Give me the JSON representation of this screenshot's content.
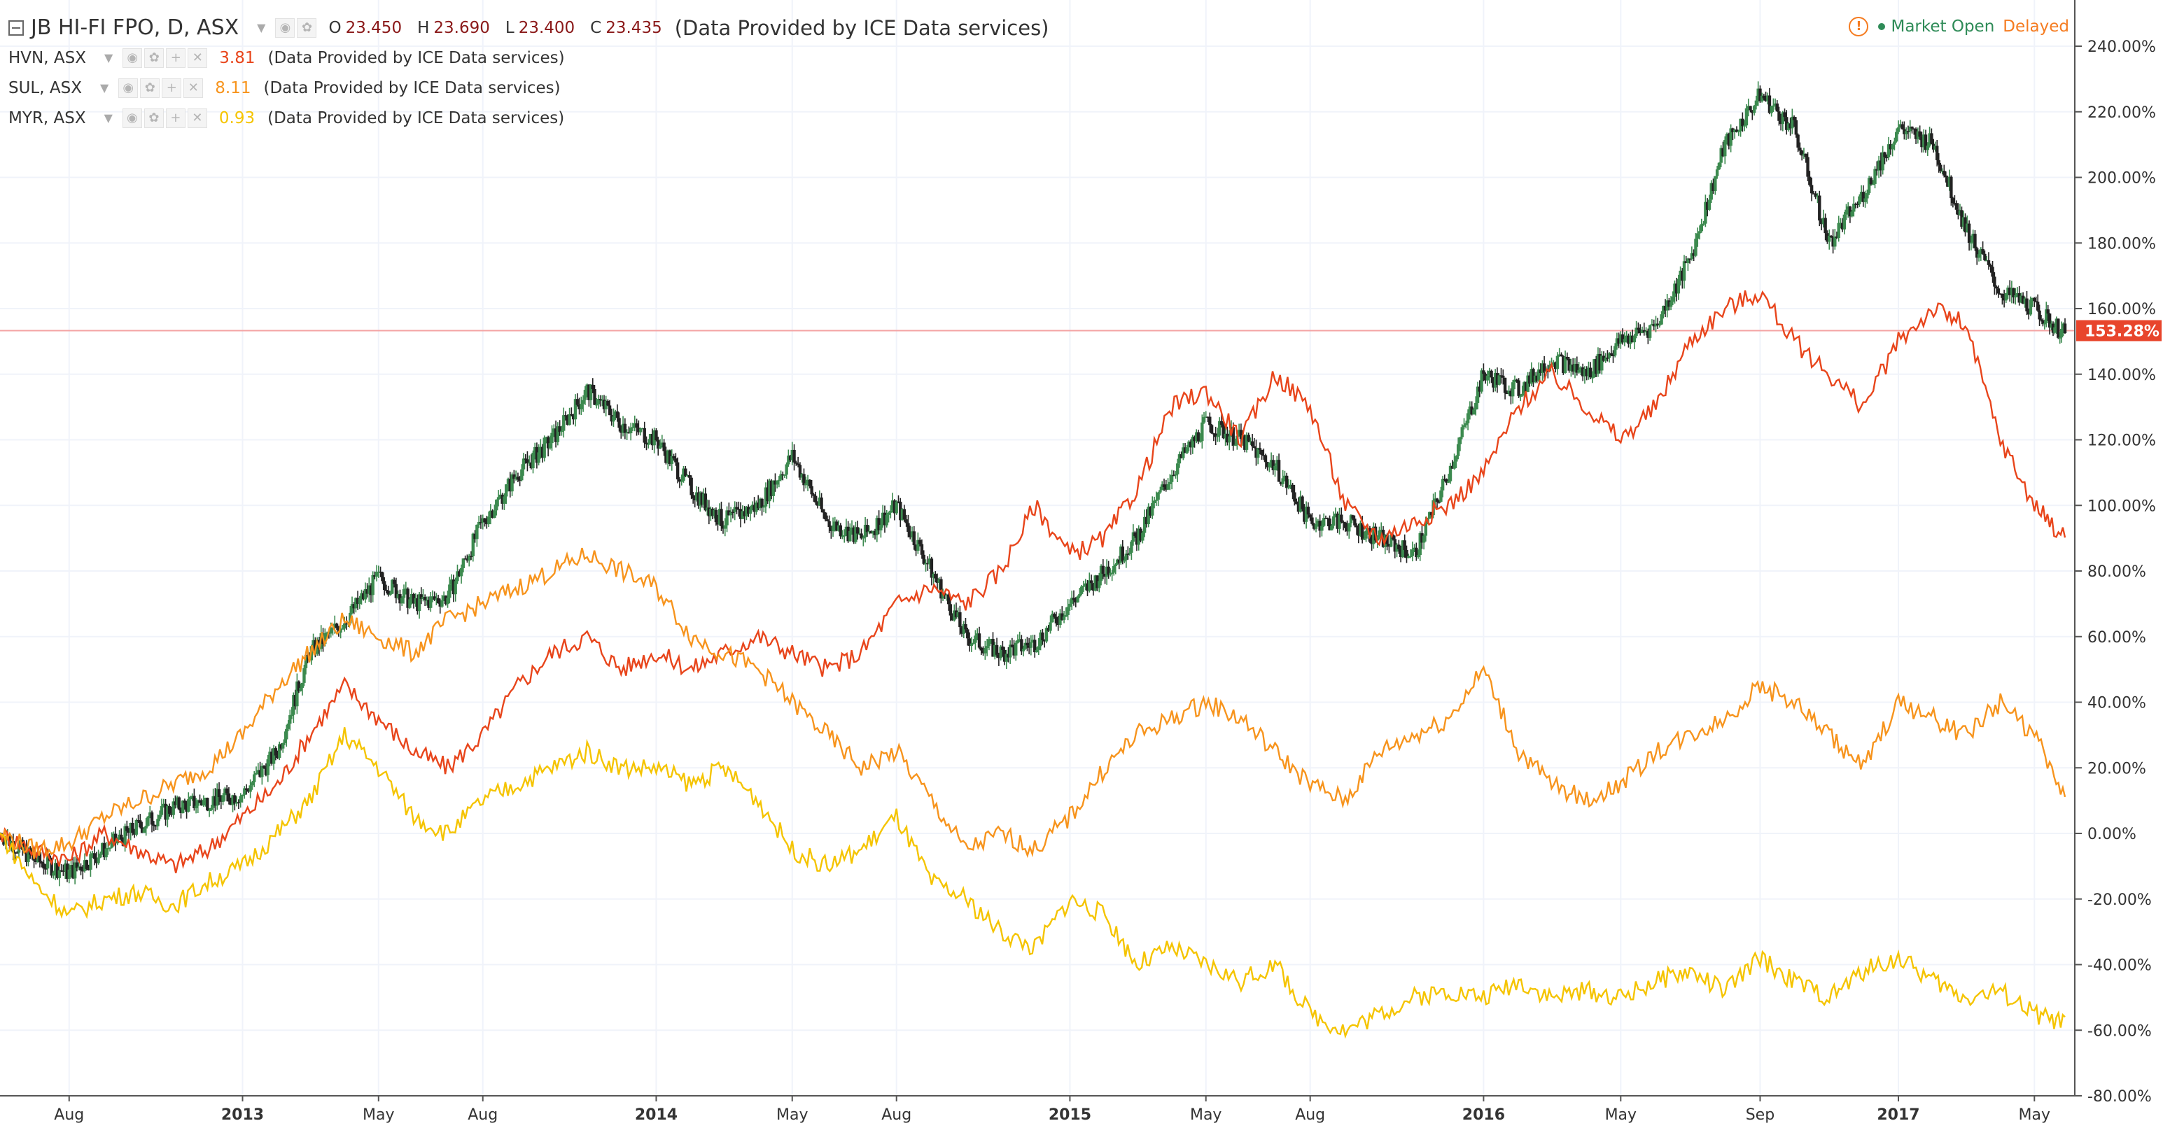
{
  "legend": {
    "main": {
      "symbol": "JB HI-FI FPO, D, ASX",
      "o_label": "O",
      "o": "23.450",
      "h_label": "H",
      "h": "23.690",
      "l_label": "L",
      "l": "23.400",
      "c_label": "C",
      "c": "23.435",
      "source": "(Data Provided by ICE Data services)"
    },
    "compare": [
      {
        "symbol": "HVN, ASX",
        "value": "3.81",
        "color": "#e8451b",
        "source": "(Data Provided by ICE Data services)"
      },
      {
        "symbol": "SUL, ASX",
        "value": "8.11",
        "color": "#f7941d",
        "source": "(Data Provided by ICE Data services)"
      },
      {
        "symbol": "MYR, ASX",
        "value": "0.93",
        "color": "#f5c400",
        "source": "(Data Provided by ICE Data services)"
      }
    ]
  },
  "status": {
    "market": "Market Open",
    "delay": "Delayed"
  },
  "current_label": "153.28%",
  "colors": {
    "candle_up": "#3c8a4f",
    "candle_down": "#222222",
    "grid": "#f0f3fa",
    "price_line": "#f4a3a3",
    "label_bg": "#e8452c"
  },
  "chart_data": {
    "type": "line",
    "title": "JB HI-FI FPO, D, ASX",
    "xlabel": "",
    "ylabel": "",
    "y_unit": "%",
    "ylim": [
      -80,
      240
    ],
    "x_ticks": [
      "Aug",
      "2013",
      "May",
      "Aug",
      "2014",
      "May",
      "Aug",
      "2015",
      "May",
      "Aug",
      "2016",
      "May",
      "Sep",
      "2017",
      "May"
    ],
    "x_tick_dates": [
      "2012-08-01",
      "2013-01-01",
      "2013-05-01",
      "2013-08-01",
      "2014-01-01",
      "2014-05-01",
      "2014-08-01",
      "2015-01-01",
      "2015-05-01",
      "2015-08-01",
      "2016-01-01",
      "2016-05-01",
      "2016-09-01",
      "2017-01-01",
      "2017-05-01"
    ],
    "x_range": [
      "2012-06-01",
      "2017-05-28"
    ],
    "y_ticks": [
      "240.00%",
      "220.00%",
      "200.00%",
      "180.00%",
      "160.00%",
      "140.00%",
      "120.00%",
      "100.00%",
      "80.00%",
      "60.00%",
      "40.00%",
      "20.00%",
      "0.00%",
      "-20.00%",
      "-40.00%",
      "-60.00%",
      "-80.00%"
    ],
    "current_value": 153.28,
    "series": [
      {
        "name": "JB HI-FI FPO",
        "style": "candles",
        "x": [
          "2012-06-01",
          "2012-07-01",
          "2012-08-01",
          "2012-09-01",
          "2012-10-01",
          "2012-11-01",
          "2012-12-01",
          "2013-01-01",
          "2013-02-01",
          "2013-03-01",
          "2013-04-01",
          "2013-05-01",
          "2013-06-01",
          "2013-07-01",
          "2013-08-01",
          "2013-09-01",
          "2013-10-01",
          "2013-11-01",
          "2013-12-01",
          "2014-01-01",
          "2014-02-01",
          "2014-03-01",
          "2014-04-01",
          "2014-05-01",
          "2014-06-01",
          "2014-07-01",
          "2014-08-01",
          "2014-09-01",
          "2014-10-01",
          "2014-11-01",
          "2014-12-01",
          "2015-01-01",
          "2015-02-01",
          "2015-03-01",
          "2015-04-01",
          "2015-05-01",
          "2015-06-01",
          "2015-07-01",
          "2015-08-01",
          "2015-09-01",
          "2015-10-01",
          "2015-11-01",
          "2015-12-01",
          "2016-01-01",
          "2016-02-01",
          "2016-03-01",
          "2016-04-01",
          "2016-05-01",
          "2016-06-01",
          "2016-07-01",
          "2016-08-01",
          "2016-09-01",
          "2016-10-01",
          "2016-11-01",
          "2016-12-01",
          "2017-01-01",
          "2017-02-01",
          "2017-03-01",
          "2017-04-01",
          "2017-05-01",
          "2017-05-28"
        ],
        "values": [
          0,
          -8,
          -12,
          -5,
          2,
          8,
          10,
          12,
          25,
          55,
          65,
          78,
          70,
          72,
          95,
          110,
          120,
          135,
          125,
          120,
          105,
          95,
          100,
          115,
          95,
          90,
          100,
          80,
          60,
          55,
          58,
          70,
          80,
          90,
          110,
          125,
          120,
          112,
          95,
          95,
          90,
          85,
          110,
          140,
          135,
          145,
          140,
          150,
          155,
          175,
          210,
          225,
          215,
          180,
          195,
          215,
          210,
          185,
          165,
          160,
          152
        ]
      },
      {
        "name": "HVN, ASX",
        "style": "line",
        "color": "#e8451b",
        "x": [
          "2012-06-01",
          "2012-07-01",
          "2012-08-01",
          "2012-09-01",
          "2012-10-01",
          "2012-11-01",
          "2012-12-01",
          "2013-01-01",
          "2013-02-01",
          "2013-03-01",
          "2013-04-01",
          "2013-05-01",
          "2013-06-01",
          "2013-07-01",
          "2013-08-01",
          "2013-09-01",
          "2013-10-01",
          "2013-11-01",
          "2013-12-01",
          "2014-01-01",
          "2014-02-01",
          "2014-03-01",
          "2014-04-01",
          "2014-05-01",
          "2014-06-01",
          "2014-07-01",
          "2014-08-01",
          "2014-09-01",
          "2014-10-01",
          "2014-11-01",
          "2014-12-01",
          "2015-01-01",
          "2015-02-01",
          "2015-03-01",
          "2015-04-01",
          "2015-05-01",
          "2015-06-01",
          "2015-07-01",
          "2015-08-01",
          "2015-09-01",
          "2015-10-01",
          "2015-11-01",
          "2015-12-01",
          "2016-01-01",
          "2016-02-01",
          "2016-03-01",
          "2016-04-01",
          "2016-05-01",
          "2016-06-01",
          "2016-07-01",
          "2016-08-01",
          "2016-09-01",
          "2016-10-01",
          "2016-11-01",
          "2016-12-01",
          "2017-01-01",
          "2017-02-01",
          "2017-03-01",
          "2017-04-01",
          "2017-05-01",
          "2017-05-28"
        ],
        "values": [
          0,
          -5,
          -8,
          0,
          -5,
          -10,
          -5,
          5,
          15,
          30,
          45,
          35,
          25,
          20,
          30,
          45,
          55,
          60,
          50,
          55,
          50,
          55,
          60,
          55,
          50,
          55,
          70,
          75,
          70,
          80,
          100,
          85,
          90,
          105,
          130,
          135,
          120,
          140,
          130,
          100,
          90,
          95,
          100,
          110,
          130,
          140,
          130,
          120,
          130,
          150,
          160,
          165,
          150,
          140,
          130,
          150,
          160,
          155,
          120,
          100,
          90
        ]
      },
      {
        "name": "SUL, ASX",
        "style": "line",
        "color": "#f7941d",
        "x": [
          "2012-06-01",
          "2012-07-01",
          "2012-08-01",
          "2012-09-01",
          "2012-10-01",
          "2012-11-01",
          "2012-12-01",
          "2013-01-01",
          "2013-02-01",
          "2013-03-01",
          "2013-04-01",
          "2013-05-01",
          "2013-06-01",
          "2013-07-01",
          "2013-08-01",
          "2013-09-01",
          "2013-10-01",
          "2013-11-01",
          "2013-12-01",
          "2014-01-01",
          "2014-02-01",
          "2014-03-01",
          "2014-04-01",
          "2014-05-01",
          "2014-06-01",
          "2014-07-01",
          "2014-08-01",
          "2014-09-01",
          "2014-10-01",
          "2014-11-01",
          "2014-12-01",
          "2015-01-01",
          "2015-02-01",
          "2015-03-01",
          "2015-04-01",
          "2015-05-01",
          "2015-06-01",
          "2015-07-01",
          "2015-08-01",
          "2015-09-01",
          "2015-10-01",
          "2015-11-01",
          "2015-12-01",
          "2016-01-01",
          "2016-02-01",
          "2016-03-01",
          "2016-04-01",
          "2016-05-01",
          "2016-06-01",
          "2016-07-01",
          "2016-08-01",
          "2016-09-01",
          "2016-10-01",
          "2016-11-01",
          "2016-12-01",
          "2017-01-01",
          "2017-02-01",
          "2017-03-01",
          "2017-04-01",
          "2017-05-01",
          "2017-05-28"
        ],
        "values": [
          0,
          -5,
          -3,
          5,
          10,
          15,
          20,
          30,
          45,
          55,
          65,
          60,
          55,
          65,
          70,
          75,
          80,
          85,
          80,
          75,
          60,
          55,
          50,
          40,
          30,
          20,
          25,
          10,
          -5,
          0,
          -5,
          5,
          20,
          30,
          35,
          40,
          35,
          25,
          15,
          10,
          25,
          30,
          35,
          50,
          25,
          15,
          10,
          15,
          25,
          30,
          35,
          45,
          40,
          30,
          20,
          40,
          35,
          30,
          40,
          30,
          10
        ]
      },
      {
        "name": "MYR, ASX",
        "style": "line",
        "color": "#f5c400",
        "x": [
          "2012-06-01",
          "2012-07-01",
          "2012-08-01",
          "2012-09-01",
          "2012-10-01",
          "2012-11-01",
          "2012-12-01",
          "2013-01-01",
          "2013-02-01",
          "2013-03-01",
          "2013-04-01",
          "2013-05-01",
          "2013-06-01",
          "2013-07-01",
          "2013-08-01",
          "2013-09-01",
          "2013-10-01",
          "2013-11-01",
          "2013-12-01",
          "2014-01-01",
          "2014-02-01",
          "2014-03-01",
          "2014-04-01",
          "2014-05-01",
          "2014-06-01",
          "2014-07-01",
          "2014-08-01",
          "2014-09-01",
          "2014-10-01",
          "2014-11-01",
          "2014-12-01",
          "2015-01-01",
          "2015-02-01",
          "2015-03-01",
          "2015-04-01",
          "2015-05-01",
          "2015-06-01",
          "2015-07-01",
          "2015-08-01",
          "2015-09-01",
          "2015-10-01",
          "2015-11-01",
          "2015-12-01",
          "2016-01-01",
          "2016-02-01",
          "2016-03-01",
          "2016-04-01",
          "2016-05-01",
          "2016-06-01",
          "2016-07-01",
          "2016-08-01",
          "2016-09-01",
          "2016-10-01",
          "2016-11-01",
          "2016-12-01",
          "2017-01-01",
          "2017-02-01",
          "2017-03-01",
          "2017-04-01",
          "2017-05-01",
          "2017-05-28"
        ],
        "values": [
          0,
          -15,
          -25,
          -20,
          -18,
          -22,
          -15,
          -10,
          0,
          10,
          30,
          20,
          5,
          0,
          10,
          15,
          20,
          25,
          20,
          20,
          15,
          20,
          10,
          -5,
          -10,
          -5,
          5,
          -15,
          -20,
          -30,
          -35,
          -20,
          -25,
          -40,
          -35,
          -40,
          -45,
          -40,
          -55,
          -60,
          -55,
          -50,
          -48,
          -50,
          -45,
          -50,
          -48,
          -50,
          -45,
          -42,
          -48,
          -38,
          -45,
          -50,
          -42,
          -38,
          -45,
          -50,
          -48,
          -55,
          -58
        ]
      }
    ]
  }
}
